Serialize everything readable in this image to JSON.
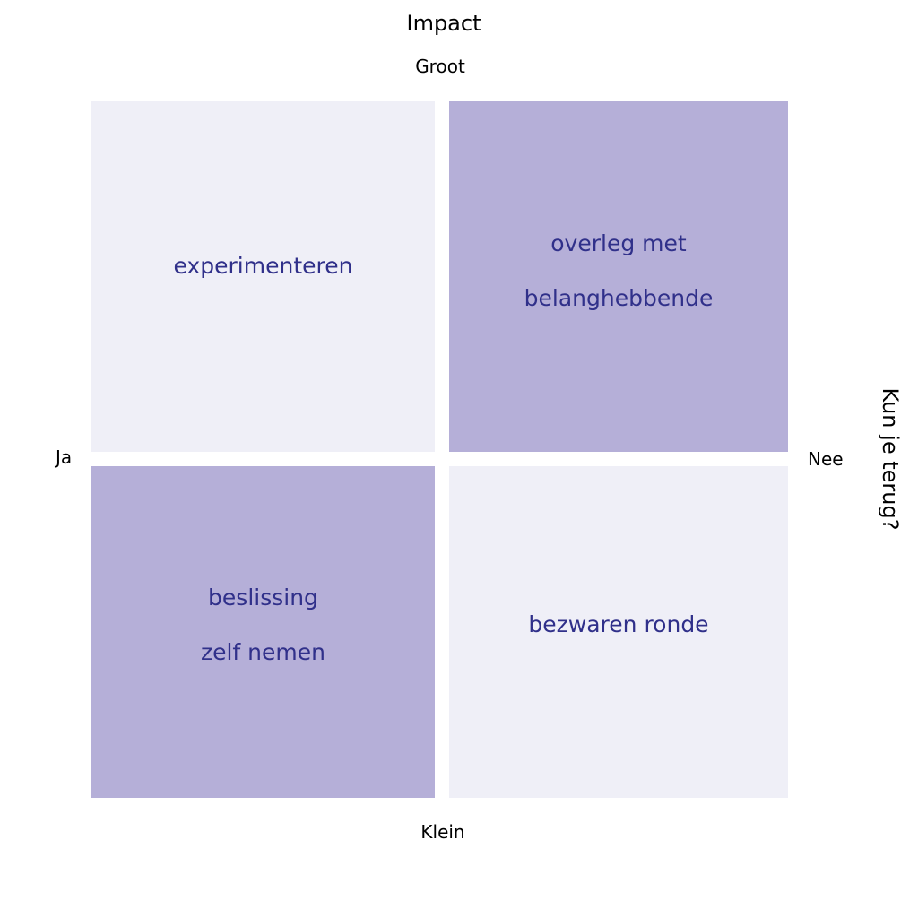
{
  "axes": {
    "vertical_title": "Impact",
    "vertical_top": "Groot",
    "vertical_bottom": "Klein",
    "horizontal_title": "Kun je terug?",
    "horizontal_left": "Ja",
    "horizontal_right": "Nee"
  },
  "quadrants": {
    "top_left": {
      "lines": [
        "experimenteren"
      ],
      "color": "#efeff7"
    },
    "top_right": {
      "lines": [
        "overleg met",
        "belanghebbende"
      ],
      "color": "#b5afd8"
    },
    "bottom_left": {
      "lines": [
        "beslissing",
        "zelf nemen"
      ],
      "color": "#b5afd8"
    },
    "bottom_right": {
      "lines": [
        "bezwaren ronde"
      ],
      "color": "#efeff7"
    }
  },
  "colors": {
    "quadrant_text": "#30308a",
    "axis_text": "#000000",
    "light_quadrant": "#efeff7",
    "dark_quadrant": "#b5afd8"
  }
}
